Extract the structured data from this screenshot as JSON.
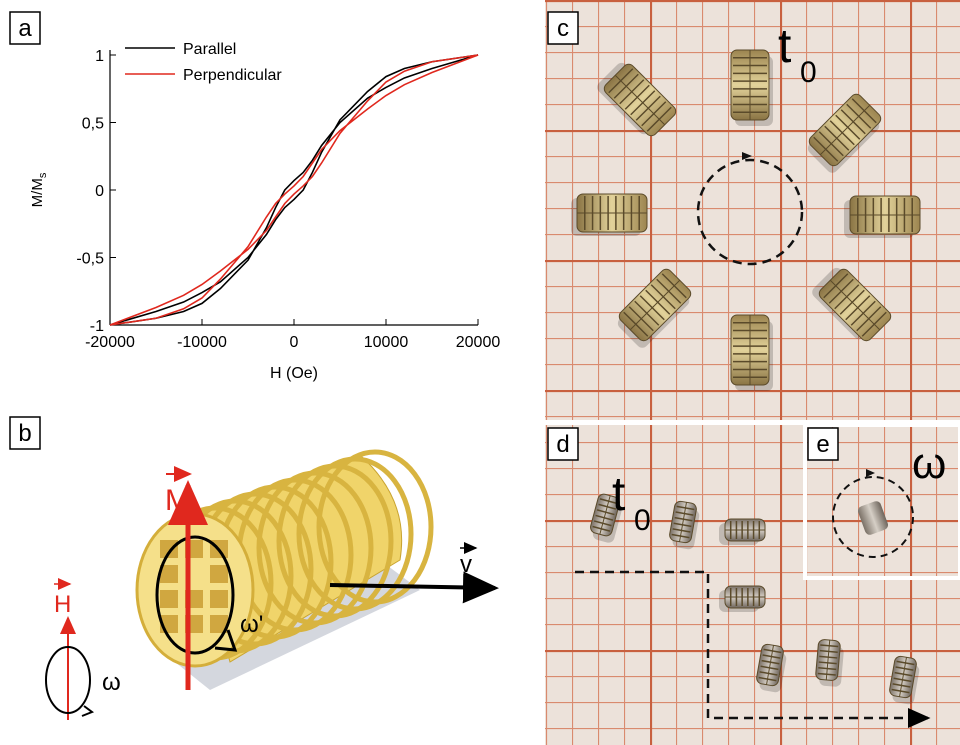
{
  "panel_labels": [
    "a",
    "b",
    "c",
    "d",
    "e"
  ],
  "chart_data": {
    "type": "line",
    "x_label": "H (Oe)",
    "y_label": {
      "main": "M/M",
      "sub": "s"
    },
    "xlim": [
      -20000,
      20000
    ],
    "xticks": [
      -20000,
      -10000,
      0,
      10000,
      20000
    ],
    "ylim": [
      -1,
      1
    ],
    "yticks": [
      -1,
      {
        "value": -0.5,
        "label": "-0,5"
      },
      0,
      {
        "value": 0.5,
        "label": "0,5"
      },
      1
    ],
    "legend": "upper left",
    "series": [
      {
        "name": "Parallel",
        "color": "#000000",
        "x": [
          -20000,
          -15000,
          -12000,
          -10000,
          -8000,
          -5000,
          -3000,
          -2000,
          -1000,
          0,
          1000,
          2000,
          3000,
          5000,
          8000,
          10000,
          12000,
          15000,
          20000,
          15000,
          12000,
          10000,
          8000,
          5000,
          3000,
          2000,
          1000,
          0,
          -1000,
          -2000,
          -3000,
          -5000,
          -8000,
          -10000,
          -12000,
          -15000,
          -20000
        ],
        "values": [
          -1,
          -0.9,
          -0.83,
          -0.76,
          -0.68,
          -0.5,
          -0.33,
          -0.22,
          -0.13,
          -0.07,
          0,
          0.13,
          0.28,
          0.52,
          0.73,
          0.84,
          0.9,
          0.95,
          1,
          0.9,
          0.83,
          0.76,
          0.68,
          0.5,
          0.33,
          0.22,
          0.13,
          0.07,
          0,
          -0.13,
          -0.28,
          -0.52,
          -0.73,
          -0.84,
          -0.9,
          -0.95,
          -1
        ]
      },
      {
        "name": "Perpendicular",
        "color": "#e0281e",
        "x": [
          -20000,
          -15000,
          -12000,
          -10000,
          -8000,
          -5000,
          -3000,
          -2000,
          -1000,
          0,
          1000,
          2000,
          3000,
          5000,
          8000,
          10000,
          12000,
          15000,
          20000,
          15000,
          12000,
          10000,
          8000,
          5000,
          3000,
          2000,
          1000,
          0,
          -1000,
          -2000,
          -3000,
          -5000,
          -8000,
          -10000,
          -12000,
          -15000,
          -20000
        ],
        "values": [
          -1,
          -0.87,
          -0.78,
          -0.7,
          -0.6,
          -0.44,
          -0.3,
          -0.2,
          -0.1,
          -0.03,
          0.03,
          0.1,
          0.2,
          0.42,
          0.66,
          0.8,
          0.88,
          0.95,
          1,
          0.87,
          0.78,
          0.7,
          0.6,
          0.44,
          0.3,
          0.2,
          0.1,
          0.03,
          -0.03,
          -0.1,
          -0.2,
          -0.42,
          -0.66,
          -0.8,
          -0.88,
          -0.95,
          -1
        ]
      }
    ]
  },
  "diagram": {
    "magnetization": "M",
    "field": "H",
    "velocity": "v",
    "omega_prime": "ω'",
    "omega": "ω"
  },
  "photo_c": {
    "time_label": {
      "main": "t",
      "sub": "0"
    }
  },
  "photo_d": {
    "time_label": {
      "main": "t",
      "sub": "0"
    }
  },
  "photo_e": {
    "label": "ω"
  }
}
